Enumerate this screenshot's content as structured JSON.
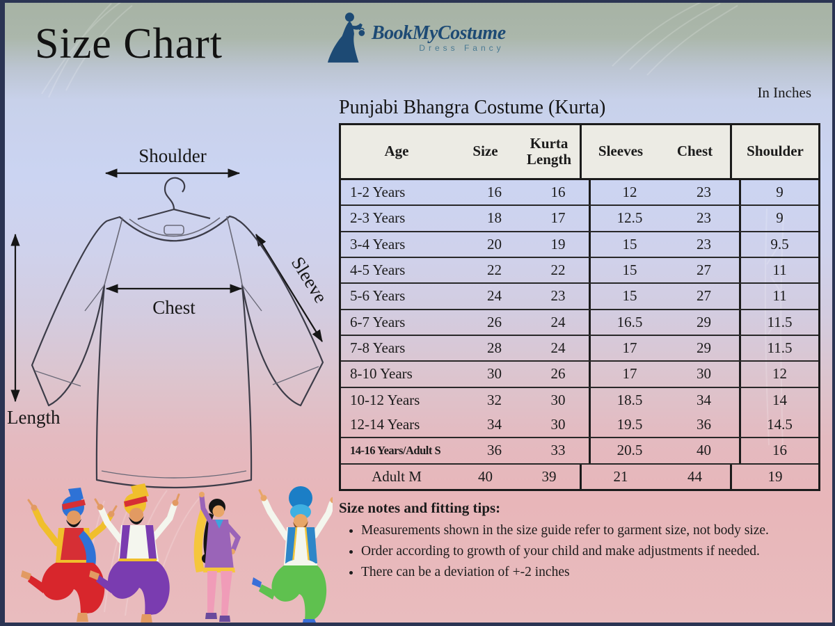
{
  "page": {
    "title": "Size Chart",
    "unit_label": "In Inches"
  },
  "logo": {
    "name": "BookMyCostume",
    "tagline": "Dress Fancy"
  },
  "table": {
    "title": "Punjabi Bhangra Costume (Kurta)",
    "headers": [
      "Age",
      "Size",
      "Kurta Length",
      "Sleeves",
      "Chest",
      "Shoulder"
    ],
    "rows": [
      {
        "age": "1-2 Years",
        "size": "16",
        "kurta_length": "16",
        "sleeves": "12",
        "chest": "23",
        "shoulder": "9"
      },
      {
        "age": "2-3 Years",
        "size": "18",
        "kurta_length": "17",
        "sleeves": "12.5",
        "chest": "23",
        "shoulder": "9"
      },
      {
        "age": "3-4 Years",
        "size": "20",
        "kurta_length": "19",
        "sleeves": "15",
        "chest": "23",
        "shoulder": "9.5"
      },
      {
        "age": "4-5 Years",
        "size": "22",
        "kurta_length": "22",
        "sleeves": "15",
        "chest": "27",
        "shoulder": "11"
      },
      {
        "age": "5-6 Years",
        "size": "24",
        "kurta_length": "23",
        "sleeves": "15",
        "chest": "27",
        "shoulder": "11"
      },
      {
        "age": "6-7 Years",
        "size": "26",
        "kurta_length": "24",
        "sleeves": "16.5",
        "chest": "29",
        "shoulder": "11.5"
      },
      {
        "age": "7-8 Years",
        "size": "28",
        "kurta_length": "24",
        "sleeves": "17",
        "chest": "29",
        "shoulder": "11.5"
      },
      {
        "age": "8-10 Years",
        "size": "30",
        "kurta_length": "26",
        "sleeves": "17",
        "chest": "30",
        "shoulder": "12"
      },
      {
        "age": "10-12 Years",
        "size": "32",
        "kurta_length": "30",
        "sleeves": "18.5",
        "chest": "34",
        "shoulder": "14"
      },
      {
        "age": "12-14 Years",
        "size": "34",
        "kurta_length": "30",
        "sleeves": "19.5",
        "chest": "36",
        "shoulder": "14.5"
      },
      {
        "age": "14-16 Years/Adult S",
        "size": "36",
        "kurta_length": "33",
        "sleeves": "20.5",
        "chest": "40",
        "shoulder": "16"
      },
      {
        "age": "Adult M",
        "size": "40",
        "kurta_length": "39",
        "sleeves": "21",
        "chest": "44",
        "shoulder": "19"
      }
    ]
  },
  "diagram": {
    "shoulder": "Shoulder",
    "chest": "Chest",
    "sleeve": "Sleeve",
    "length": "Length"
  },
  "notes": {
    "heading": "Size notes and fitting tips:",
    "items": [
      "Measurements shown in the size guide refer to garment size, not body size.",
      "Order according to growth of your child and make adjustments if needed.",
      "There can be a deviation of +-2 inches"
    ]
  },
  "icons": {
    "logo_icon": "woman-in-gown-silhouette",
    "diagram_icon": "kurta-on-hanger-line-drawing",
    "footer_illustration": "bhangra-dancers"
  },
  "colors": {
    "logo_navy": "#1d4a74",
    "frame_border": "#2b3453",
    "table_header_bg": "#ECEBE4",
    "ink": "#1b1b1b"
  }
}
